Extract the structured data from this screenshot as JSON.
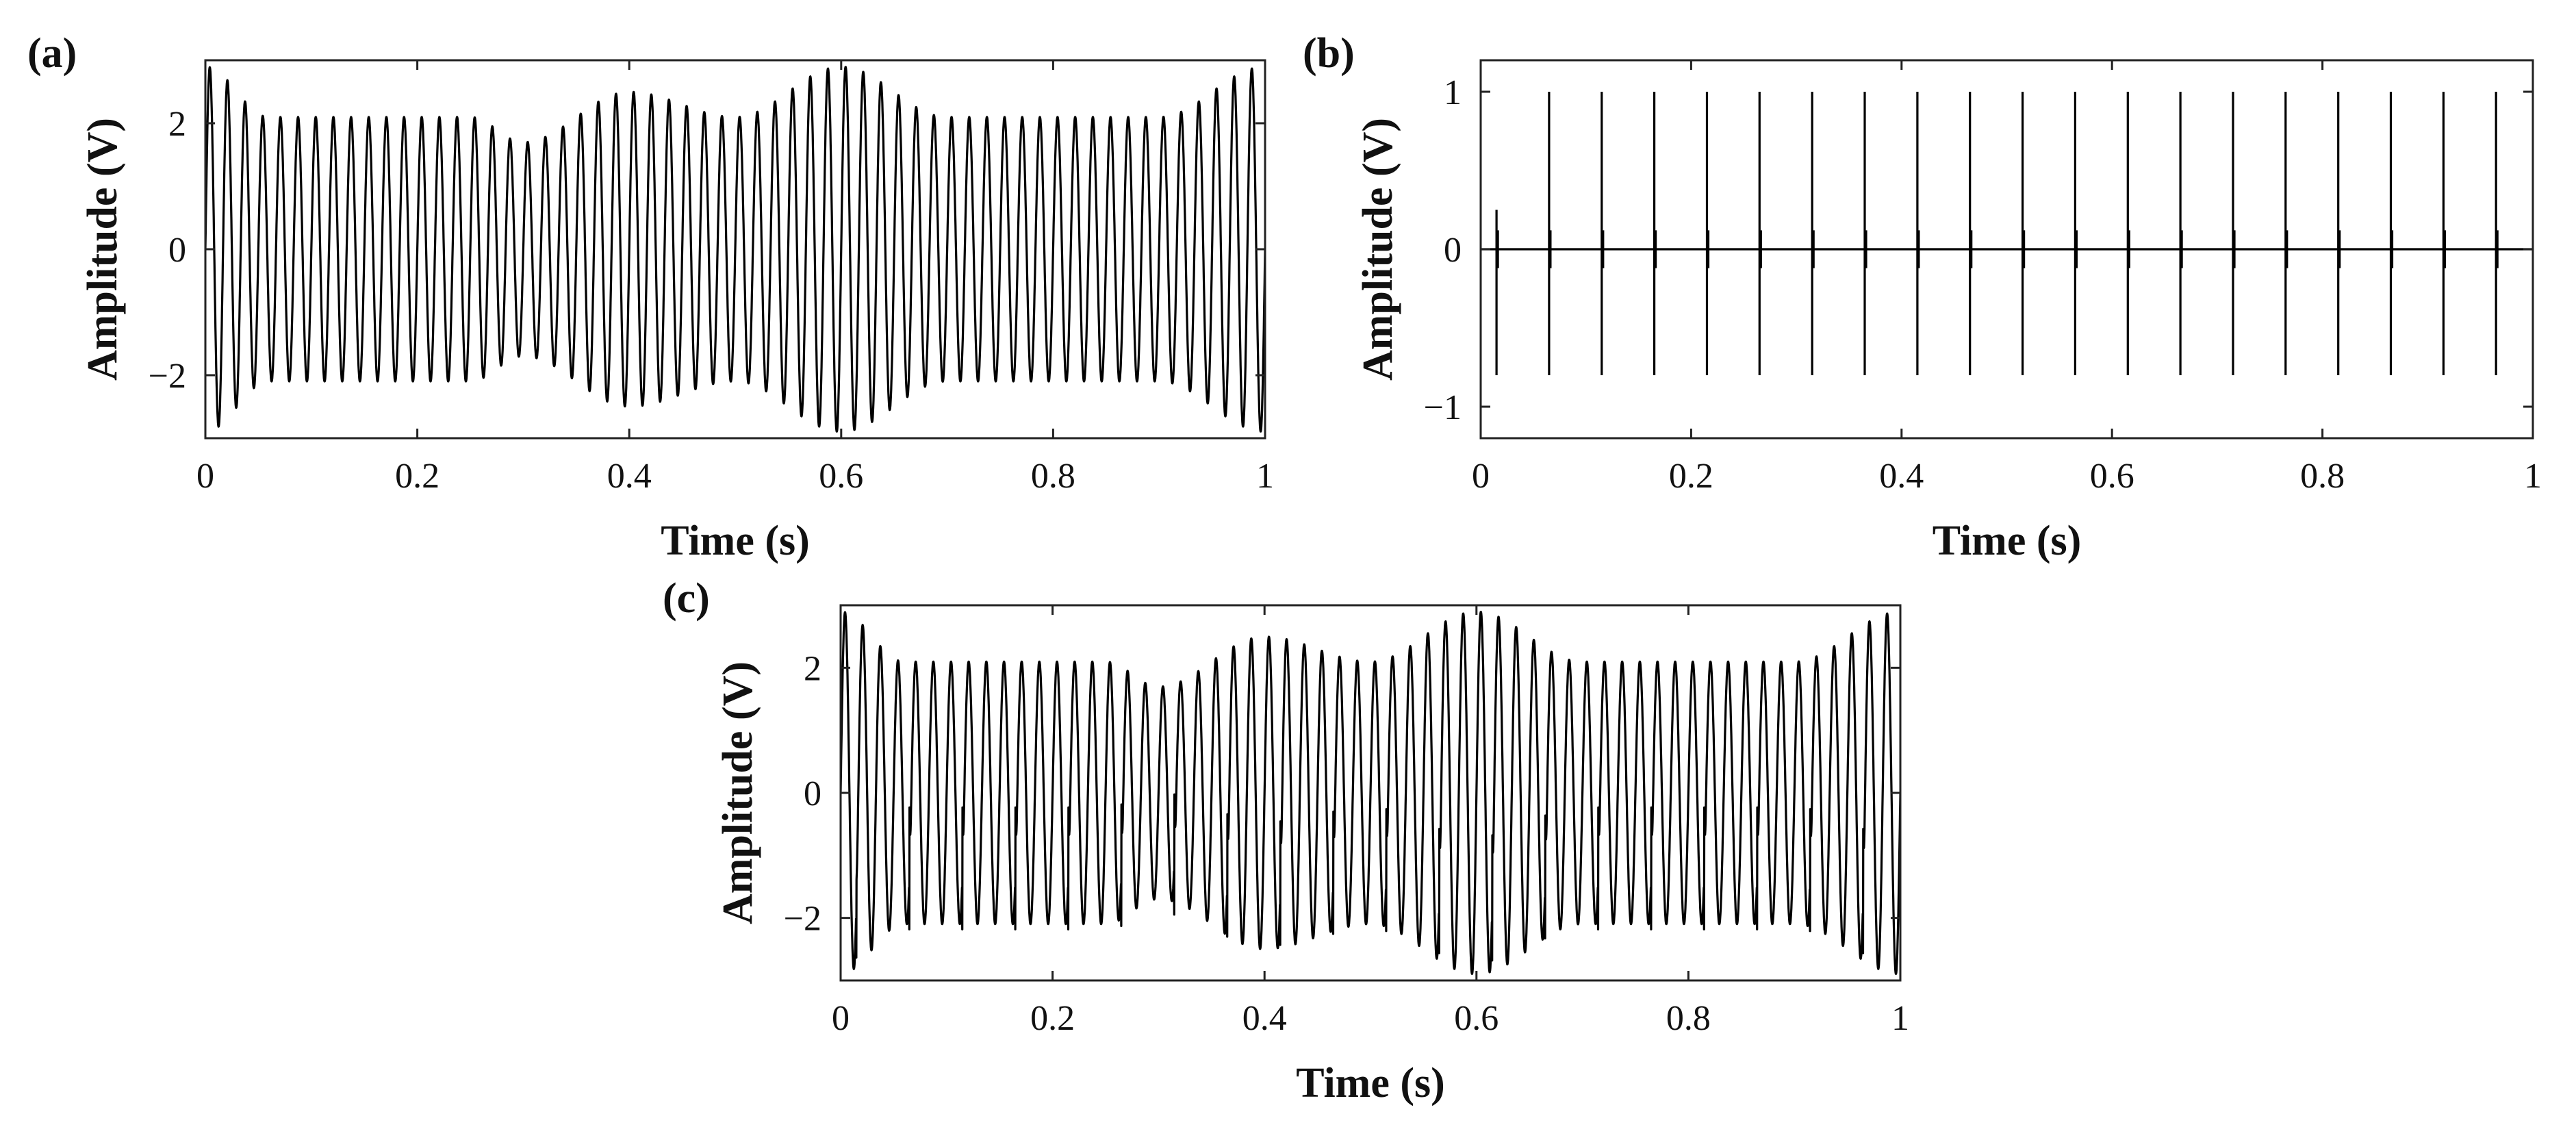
{
  "chart_data": [
    {
      "type": "line",
      "panel_label": "(a)",
      "signal": "modulated",
      "xlabel": "Time (s)",
      "ylabel": "Amplitude (V)",
      "xlim": [
        0,
        1
      ],
      "ylim": [
        -3,
        3
      ],
      "xticks": [
        0,
        0.2,
        0.4,
        0.6,
        0.8,
        1
      ],
      "xtick_labels": [
        "0",
        "0.2",
        "0.4",
        "0.6",
        "0.8",
        "1"
      ],
      "yticks": [
        -2,
        0,
        2
      ],
      "ytick_labels": [
        "−2",
        "0",
        "2"
      ],
      "carrier_frequency_hz": 60,
      "envelope_knots": {
        "t": [
          0,
          0.06,
          0.15,
          0.25,
          0.3,
          0.4,
          0.5,
          0.6,
          0.7,
          0.8,
          0.9,
          1.0
        ],
        "amp": [
          2.9,
          2.1,
          2.1,
          2.1,
          1.7,
          2.5,
          2.1,
          2.9,
          2.1,
          2.1,
          2.1,
          2.9
        ]
      },
      "grid": false
    },
    {
      "type": "line",
      "panel_label": "(b)",
      "signal": "impulses",
      "xlabel": "Time (s)",
      "ylabel": "Amplitude (V)",
      "xlim": [
        0,
        1
      ],
      "ylim": [
        -1.2,
        1.2
      ],
      "xticks": [
        0,
        0.2,
        0.4,
        0.6,
        0.8,
        1
      ],
      "xtick_labels": [
        "0",
        "0.2",
        "0.4",
        "0.6",
        "0.8",
        "1"
      ],
      "yticks": [
        -1,
        0,
        1
      ],
      "ytick_labels": [
        "−1",
        "0",
        "1"
      ],
      "impulse_times": [
        0.015,
        0.065,
        0.115,
        0.165,
        0.215,
        0.265,
        0.315,
        0.365,
        0.415,
        0.465,
        0.515,
        0.565,
        0.615,
        0.665,
        0.715,
        0.765,
        0.815,
        0.865,
        0.915,
        0.965
      ],
      "impulse_peak": 1.0,
      "impulse_trough": -0.8,
      "first_impulse_peak": 0.25,
      "grid": false
    },
    {
      "type": "line",
      "panel_label": "(c)",
      "signal": "modulated_plus_impulses",
      "xlabel": "Time (s)",
      "ylabel": "Amplitude (V)",
      "xlim": [
        0,
        1
      ],
      "ylim": [
        -3,
        3
      ],
      "xticks": [
        0,
        0.2,
        0.4,
        0.6,
        0.8,
        1
      ],
      "xtick_labels": [
        "0",
        "0.2",
        "0.4",
        "0.6",
        "0.8",
        "1"
      ],
      "yticks": [
        -2,
        0,
        2
      ],
      "ytick_labels": [
        "−2",
        "0",
        "2"
      ],
      "composition": "(a) + (b)",
      "grid": false
    }
  ]
}
